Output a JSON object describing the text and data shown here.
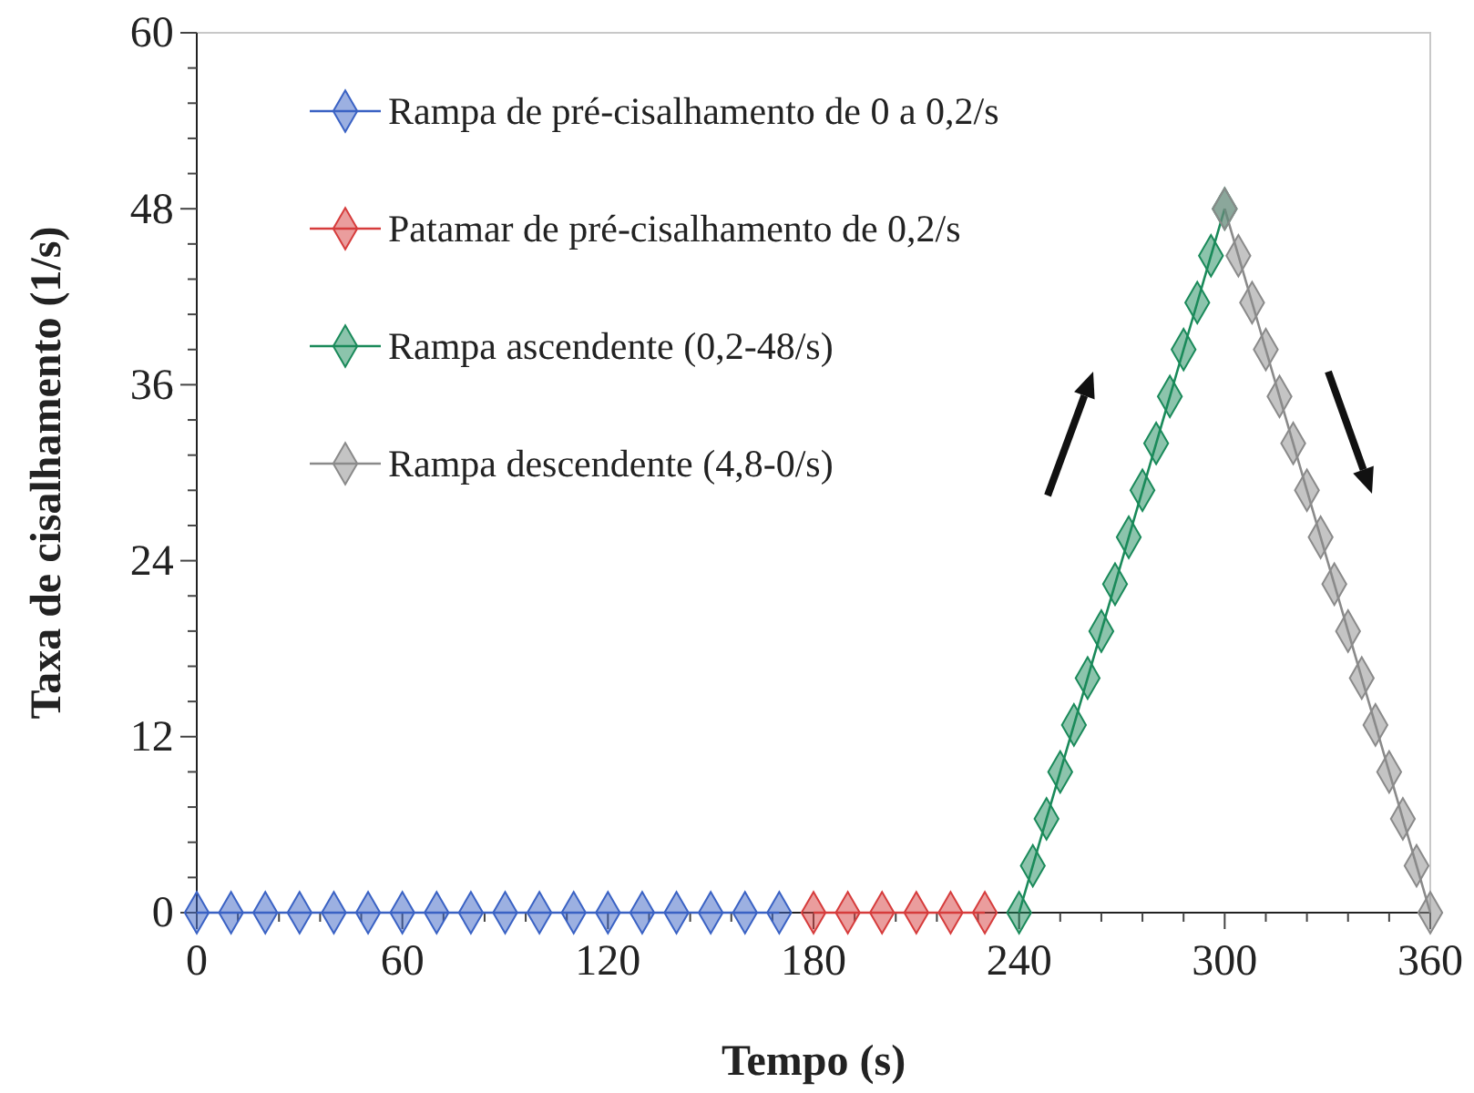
{
  "chart_data": {
    "type": "line",
    "xlabel": "Tempo (s)",
    "ylabel": "Taxa de cisalhamento (1/s)",
    "xlim": [
      0,
      360
    ],
    "ylim": [
      0,
      60
    ],
    "xticks": [
      0,
      {
        "value": 12,
        "label": null
      },
      {
        "value": 24,
        "label": null
      },
      {
        "value": 36,
        "label": null
      },
      {
        "value": 48,
        "label": null
      },
      60,
      {
        "value": 72,
        "label": null
      },
      {
        "value": 84,
        "label": null
      },
      {
        "value": 96,
        "label": null
      },
      {
        "value": 108,
        "label": null
      },
      120,
      {
        "value": 132,
        "label": null
      },
      {
        "value": 144,
        "label": null
      },
      {
        "value": 156,
        "label": null
      },
      {
        "value": 168,
        "label": null
      },
      180,
      {
        "value": 192,
        "label": null
      },
      {
        "value": 204,
        "label": null
      },
      {
        "value": 216,
        "label": null
      },
      {
        "value": 228,
        "label": null
      },
      240,
      {
        "value": 252,
        "label": null
      },
      {
        "value": 264,
        "label": null
      },
      {
        "value": 276,
        "label": null
      },
      {
        "value": 288,
        "label": null
      },
      300,
      {
        "value": 312,
        "label": null
      },
      {
        "value": 324,
        "label": null
      },
      {
        "value": 336,
        "label": null
      },
      {
        "value": 348,
        "label": null
      },
      360
    ],
    "yticks": [
      0,
      {
        "value": 2.4,
        "label": null
      },
      {
        "value": 4.8,
        "label": null
      },
      {
        "value": 7.2,
        "label": null
      },
      {
        "value": 9.6,
        "label": null
      },
      12,
      {
        "value": 14.4,
        "label": null
      },
      {
        "value": 16.8,
        "label": null
      },
      {
        "value": 19.2,
        "label": null
      },
      {
        "value": 21.6,
        "label": null
      },
      24,
      {
        "value": 26.4,
        "label": null
      },
      {
        "value": 28.8,
        "label": null
      },
      {
        "value": 31.2,
        "label": null
      },
      {
        "value": 33.6,
        "label": null
      },
      36,
      {
        "value": 38.4,
        "label": null
      },
      {
        "value": 40.8,
        "label": null
      },
      {
        "value": 43.2,
        "label": null
      },
      {
        "value": 45.6,
        "label": null
      },
      48,
      {
        "value": 50.4,
        "label": null
      },
      {
        "value": 52.8,
        "label": null
      },
      {
        "value": 55.2,
        "label": null
      },
      {
        "value": 57.6,
        "label": null
      },
      60
    ],
    "marker": "diamond",
    "line_style": "solid",
    "grid": false,
    "legend": "top left",
    "series": [
      {
        "name": "Rampa de pré-cisalhamento de 0 a 0,2/s",
        "color": "#3a62c4",
        "x": [
          0,
          10,
          20,
          30,
          40,
          50,
          60,
          70,
          80,
          90,
          100,
          110,
          120,
          130,
          140,
          150,
          160,
          170
        ],
        "values": [
          0,
          0,
          0,
          0,
          0,
          0,
          0,
          0,
          0,
          0,
          0,
          0,
          0,
          0,
          0,
          0,
          0,
          0
        ]
      },
      {
        "name": "Patamar de pré-cisalhamento de 0,2/s",
        "color": "#d63c3c",
        "x": [
          180,
          190,
          200,
          210,
          220,
          230
        ],
        "values": [
          0,
          0,
          0,
          0,
          0,
          0
        ]
      },
      {
        "name": "Rampa ascendente (0,2-48/s)",
        "color": "#1a8a5a",
        "x": [
          240,
          244,
          248,
          252,
          256,
          260,
          264,
          268,
          272,
          276,
          280,
          284,
          288,
          292,
          296,
          300
        ],
        "values": [
          0,
          3.2,
          6.4,
          9.6,
          12.8,
          16,
          19.2,
          22.4,
          25.6,
          28.8,
          32,
          35.2,
          38.4,
          41.6,
          44.8,
          48
        ]
      },
      {
        "name": "Rampa descendente (4,8-0/s)",
        "color": "#8a8a8a",
        "x": [
          300,
          304,
          308,
          312,
          316,
          320,
          324,
          328,
          332,
          336,
          340,
          344,
          348,
          352,
          356,
          360
        ],
        "values": [
          48,
          44.8,
          41.6,
          38.4,
          35.2,
          32,
          28.8,
          25.6,
          22.4,
          19.2,
          16,
          12.8,
          9.6,
          6.4,
          3.2,
          0
        ]
      }
    ]
  }
}
